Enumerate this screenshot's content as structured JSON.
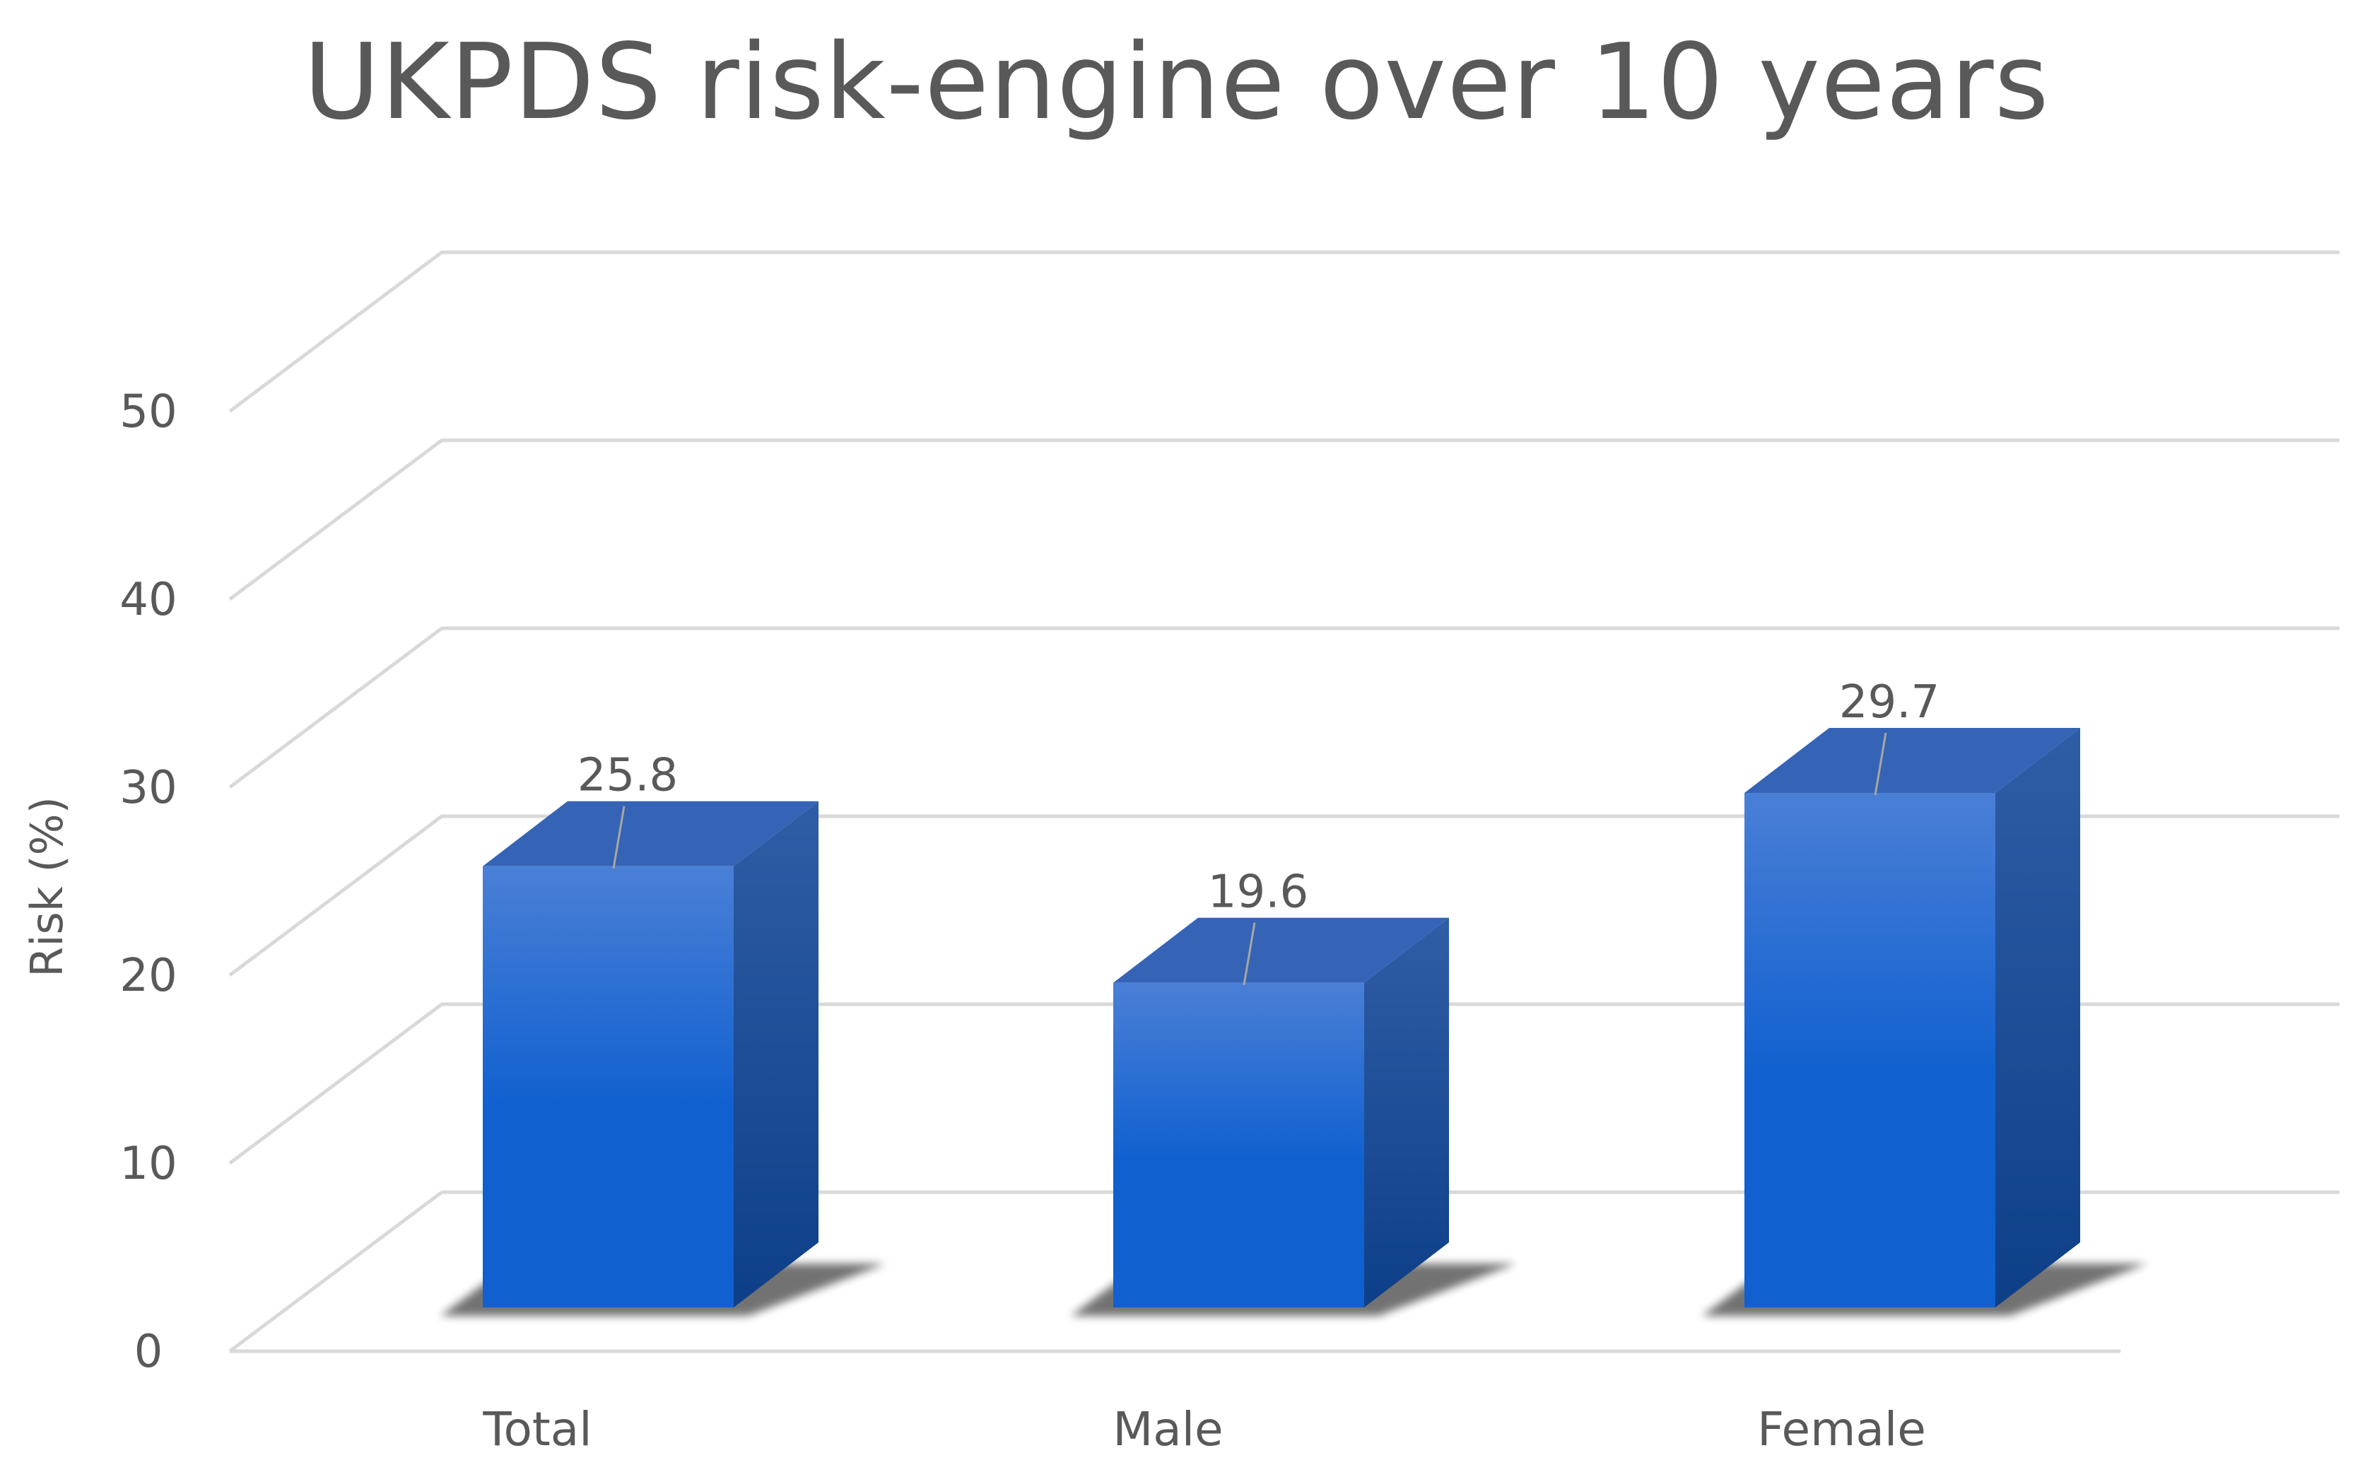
{
  "chart_data": {
    "type": "bar",
    "title": "UKPDS risk-engine over 10 years",
    "xlabel": "",
    "ylabel": "Risk (%)",
    "categories": [
      "Total",
      "Male",
      "Female"
    ],
    "values": [
      25.8,
      19.6,
      29.7
    ],
    "data_labels": [
      "25.8",
      "19.6",
      "29.7"
    ],
    "yticks": [
      "0",
      "10",
      "20",
      "30",
      "40",
      "50"
    ],
    "ylim": [
      0,
      50
    ],
    "grid": true,
    "legend": "none",
    "style": "3d-column",
    "colors": {
      "bar_front_top": "#4a7fd6",
      "bar_front_bottom": "#1060d0",
      "bar_side_top": "#2f5da6",
      "bar_side_bottom": "#0d3f88",
      "bar_top": "#3563b5",
      "gridline": "#d9d9d9",
      "text": "#595959"
    }
  }
}
